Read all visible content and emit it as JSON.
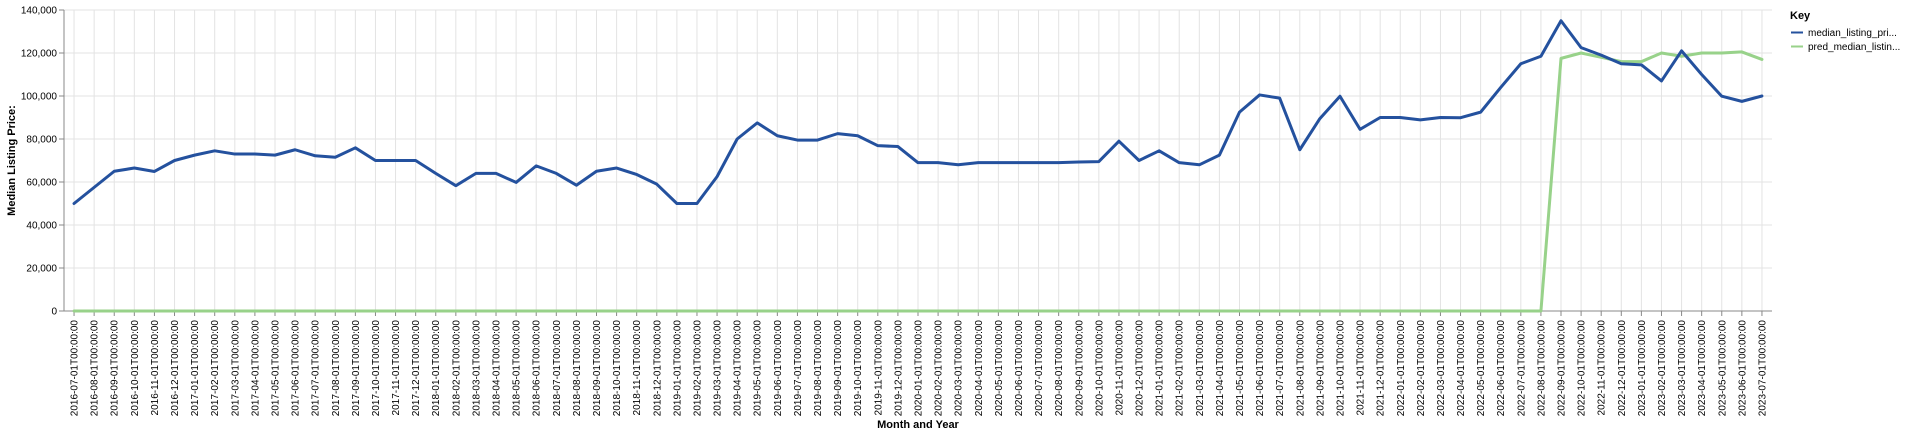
{
  "chart_data": {
    "type": "line",
    "xlabel": "Month and Year",
    "ylabel": "Median Listing Price:",
    "ylim": [
      0,
      140000
    ],
    "yticks": [
      0,
      20000,
      40000,
      60000,
      80000,
      100000,
      120000,
      140000
    ],
    "ytick_labels": [
      "0",
      "20,000",
      "40,000",
      "60,000",
      "80,000",
      "100,000",
      "120,000",
      "140,000"
    ],
    "grid": true,
    "legend": {
      "title": "Key",
      "placement": "right"
    },
    "x": [
      "2016-07-01T00:00:00",
      "2016-08-01T00:00:00",
      "2016-09-01T00:00:00",
      "2016-10-01T00:00:00",
      "2016-11-01T00:00:00",
      "2016-12-01T00:00:00",
      "2017-01-01T00:00:00",
      "2017-02-01T00:00:00",
      "2017-03-01T00:00:00",
      "2017-04-01T00:00:00",
      "2017-05-01T00:00:00",
      "2017-06-01T00:00:00",
      "2017-07-01T00:00:00",
      "2017-08-01T00:00:00",
      "2017-09-01T00:00:00",
      "2017-10-01T00:00:00",
      "2017-11-01T00:00:00",
      "2017-12-01T00:00:00",
      "2018-01-01T00:00:00",
      "2018-02-01T00:00:00",
      "2018-03-01T00:00:00",
      "2018-04-01T00:00:00",
      "2018-05-01T00:00:00",
      "2018-06-01T00:00:00",
      "2018-07-01T00:00:00",
      "2018-08-01T00:00:00",
      "2018-09-01T00:00:00",
      "2018-10-01T00:00:00",
      "2018-11-01T00:00:00",
      "2018-12-01T00:00:00",
      "2019-01-01T00:00:00",
      "2019-02-01T00:00:00",
      "2019-03-01T00:00:00",
      "2019-04-01T00:00:00",
      "2019-05-01T00:00:00",
      "2019-06-01T00:00:00",
      "2019-07-01T00:00:00",
      "2019-08-01T00:00:00",
      "2019-09-01T00:00:00",
      "2019-10-01T00:00:00",
      "2019-11-01T00:00:00",
      "2019-12-01T00:00:00",
      "2020-01-01T00:00:00",
      "2020-02-01T00:00:00",
      "2020-03-01T00:00:00",
      "2020-04-01T00:00:00",
      "2020-05-01T00:00:00",
      "2020-06-01T00:00:00",
      "2020-07-01T00:00:00",
      "2020-08-01T00:00:00",
      "2020-09-01T00:00:00",
      "2020-10-01T00:00:00",
      "2020-11-01T00:00:00",
      "2020-12-01T00:00:00",
      "2021-01-01T00:00:00",
      "2021-02-01T00:00:00",
      "2021-03-01T00:00:00",
      "2021-04-01T00:00:00",
      "2021-05-01T00:00:00",
      "2021-06-01T00:00:00",
      "2021-07-01T00:00:00",
      "2021-08-01T00:00:00",
      "2021-09-01T00:00:00",
      "2021-10-01T00:00:00",
      "2021-11-01T00:00:00",
      "2021-12-01T00:00:00",
      "2022-01-01T00:00:00",
      "2022-02-01T00:00:00",
      "2022-03-01T00:00:00",
      "2022-04-01T00:00:00",
      "2022-05-01T00:00:00",
      "2022-06-01T00:00:00",
      "2022-07-01T00:00:00",
      "2022-08-01T00:00:00",
      "2022-09-01T00:00:00",
      "2022-10-01T00:00:00",
      "2022-11-01T00:00:00",
      "2022-12-01T00:00:00",
      "2023-01-01T00:00:00",
      "2023-02-01T00:00:00",
      "2023-03-01T00:00:00",
      "2023-04-01T00:00:00",
      "2023-05-01T00:00:00",
      "2023-06-01T00:00:00",
      "2023-07-01T00:00:00"
    ],
    "series": [
      {
        "name": "median_listing_pri...",
        "color": "#24519e",
        "values": [
          50000,
          57500,
          65000,
          66500,
          64900,
          70000,
          72500,
          74500,
          73000,
          73000,
          72500,
          75000,
          72200,
          71500,
          75900,
          70000,
          70000,
          70000,
          64000,
          58300,
          64000,
          64000,
          59800,
          67500,
          64000,
          58500,
          65000,
          66500,
          63500,
          59000,
          50000,
          50000,
          62500,
          80000,
          87500,
          81500,
          79500,
          79500,
          82500,
          81500,
          76900,
          76500,
          69000,
          69000,
          68000,
          69000,
          69000,
          69000,
          69000,
          69000,
          69300,
          69500,
          79000,
          70000,
          74500,
          69000,
          68000,
          72500,
          92500,
          100500,
          99000,
          75000,
          89500,
          99900,
          84500,
          90000,
          90000,
          88900,
          90000,
          89900,
          92500,
          104000,
          115000,
          118500,
          135000,
          122500,
          119000,
          115000,
          114500,
          107000,
          121000,
          110000,
          99900,
          97500,
          100000
        ]
      },
      {
        "name": "pred_median_listin...",
        "color": "#98d28a",
        "values": [
          0,
          0,
          0,
          0,
          0,
          0,
          0,
          0,
          0,
          0,
          0,
          0,
          0,
          0,
          0,
          0,
          0,
          0,
          0,
          0,
          0,
          0,
          0,
          0,
          0,
          0,
          0,
          0,
          0,
          0,
          0,
          0,
          0,
          0,
          0,
          0,
          0,
          0,
          0,
          0,
          0,
          0,
          0,
          0,
          0,
          0,
          0,
          0,
          0,
          0,
          0,
          0,
          0,
          0,
          0,
          0,
          0,
          0,
          0,
          0,
          0,
          0,
          0,
          0,
          0,
          0,
          0,
          0,
          0,
          0,
          0,
          0,
          0,
          0,
          117500,
          120000,
          118000,
          116000,
          116000,
          120000,
          118500,
          120000,
          120000,
          120500,
          117000
        ]
      }
    ]
  }
}
